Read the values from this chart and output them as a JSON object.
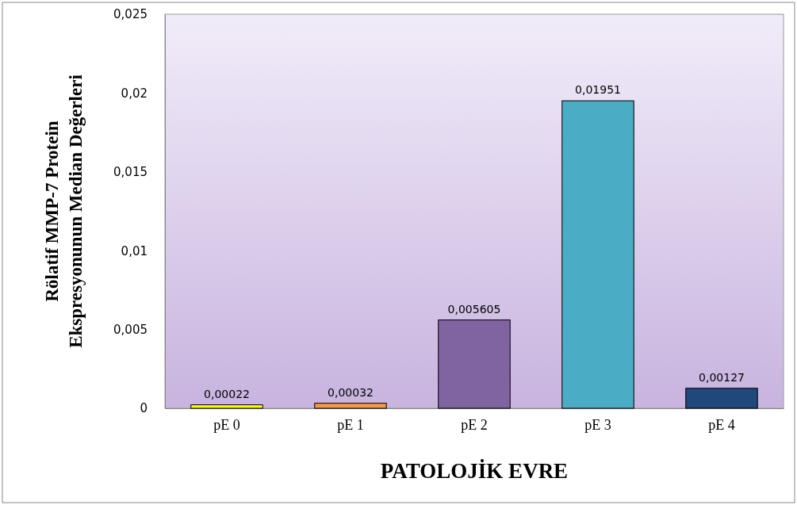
{
  "chart_data": {
    "type": "bar",
    "xlabel": "PATOLOJİK EVRE",
    "ylabel": "Rölatif MMP-7 Protein\nEkspresyonunun Median Değerleri",
    "categories": [
      "pE 0",
      "pE 1",
      "pE 2",
      "pE 3",
      "pE 4"
    ],
    "values": [
      0.00022,
      0.00032,
      0.005605,
      0.01951,
      0.00127
    ],
    "colors": [
      "#ffff00",
      "#f79646",
      "#8064a2",
      "#4bacc6",
      "#1f497d"
    ],
    "value_labels": [
      "0,00022",
      "0,00032",
      "0,005605",
      "0,01951",
      "0,00127"
    ],
    "ylim": [
      0,
      0.025
    ],
    "yticks": [
      {
        "value": 0,
        "label": "0"
      },
      {
        "value": 0.005,
        "label": "0,005"
      },
      {
        "value": 0.01,
        "label": "0,01"
      },
      {
        "value": 0.015,
        "label": "0,015"
      },
      {
        "value": 0.02,
        "label": "0,02"
      },
      {
        "value": 0.025,
        "label": "0,025"
      }
    ]
  }
}
